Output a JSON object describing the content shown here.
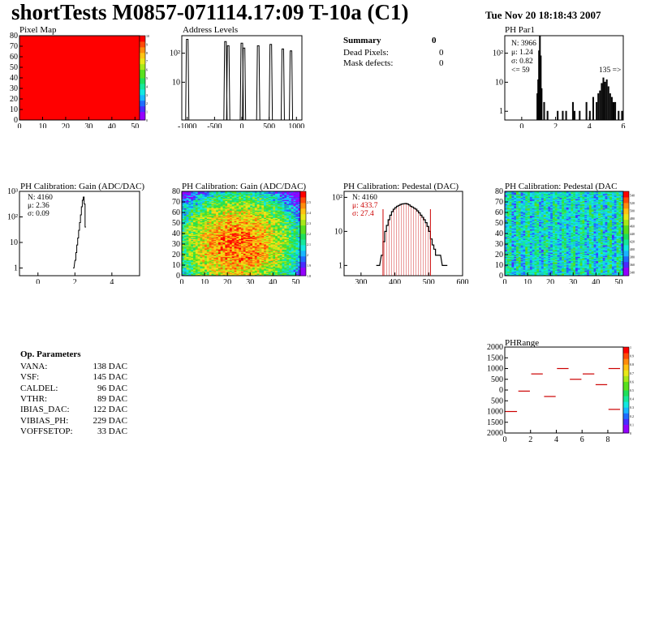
{
  "title": "shortTests M0857-071114.17:09 T-10a (C1)",
  "date": "Tue Nov 20 18:18:43 2007",
  "summary": {
    "title": "Summary",
    "value": "0",
    "rows": [
      {
        "label": "Dead Pixels:",
        "value": "0"
      },
      {
        "label": "Mask defects:",
        "value": "0"
      }
    ]
  },
  "op_parameters": {
    "title": "Op. Parameters",
    "rows": [
      {
        "name": "VANA:",
        "value": "138 DAC"
      },
      {
        "name": "VSF:",
        "value": "145 DAC"
      },
      {
        "name": "CALDEL:",
        "value": "96 DAC"
      },
      {
        "name": "VTHR:",
        "value": "89 DAC"
      },
      {
        "name": "IBIAS_DAC:",
        "value": "122 DAC"
      },
      {
        "name": "VIBIAS_PH:",
        "value": "229 DAC"
      },
      {
        "name": "VOFFSETOP:",
        "value": "33 DAC"
      }
    ]
  },
  "colors": {
    "palette": [
      "#9400ff",
      "#4a2cff",
      "#1f6dff",
      "#19b6ff",
      "#12e8e0",
      "#16e89a",
      "#1ee05a",
      "#58e01e",
      "#a8e818",
      "#e8e818",
      "#ffc312",
      "#ff8c0c",
      "#ff4a08",
      "#ff0000"
    ],
    "hist_line": "#000000",
    "red": "#cc0000"
  },
  "chart_data": [
    {
      "id": "pixel-map",
      "type": "heatmap",
      "title": "Pixel Map",
      "xlim": [
        0,
        52
      ],
      "ylim": [
        0,
        80
      ],
      "xticks": [
        0,
        10,
        20,
        30,
        40,
        50
      ],
      "yticks": [
        0,
        10,
        20,
        30,
        40,
        50,
        60,
        70,
        80
      ],
      "zticks": [
        0,
        1,
        2,
        3,
        4,
        5,
        6,
        7,
        8,
        9,
        10
      ],
      "zlim": [
        0,
        10
      ],
      "fill_value": 10
    },
    {
      "id": "address-levels",
      "type": "bar",
      "title": "Address Levels",
      "xlim": [
        -1100,
        1100
      ],
      "ylim": [
        0.5,
        400
      ],
      "log_y": true,
      "xticks": [
        -1000,
        -500,
        0,
        500,
        1000
      ],
      "yticks": [
        {
          "v": 10,
          "label": "10"
        },
        {
          "v": 100,
          "label": "10²"
        }
      ],
      "peaks": [
        {
          "x": -1000,
          "y": 300
        },
        {
          "x": -300,
          "y": 250
        },
        {
          "x": -250,
          "y": 180
        },
        {
          "x": 0,
          "y": 220
        },
        {
          "x": 40,
          "y": 150
        },
        {
          "x": 300,
          "y": 180
        },
        {
          "x": 530,
          "y": 200
        },
        {
          "x": 750,
          "y": 140
        },
        {
          "x": 900,
          "y": 120
        }
      ]
    },
    {
      "id": "ph-par1",
      "type": "bar",
      "title": "PH Par1",
      "xlim": [
        -1,
        6
      ],
      "ylim": [
        0.5,
        400
      ],
      "log_y": true,
      "xticks": [
        0,
        2,
        4,
        6
      ],
      "yticks": [
        {
          "v": 1,
          "label": "1"
        },
        {
          "v": 10,
          "label": "10"
        },
        {
          "v": 100,
          "label": "10²"
        }
      ],
      "stats": [
        "N: 3966",
        "μ: 1.24",
        "σ: 0.82",
        "<= 59"
      ],
      "overflow_label": "135 =>",
      "bins": [
        [
          0.9,
          4
        ],
        [
          0.95,
          12
        ],
        [
          1.0,
          120
        ],
        [
          1.05,
          400
        ],
        [
          1.1,
          80
        ],
        [
          1.15,
          6
        ],
        [
          1.3,
          2
        ],
        [
          1.5,
          1
        ],
        [
          2.1,
          1
        ],
        [
          2.4,
          1
        ],
        [
          2.6,
          1
        ],
        [
          3.0,
          2
        ],
        [
          3.1,
          1
        ],
        [
          3.4,
          1
        ],
        [
          3.8,
          2
        ],
        [
          4.0,
          1
        ],
        [
          4.2,
          3
        ],
        [
          4.4,
          2
        ],
        [
          4.5,
          4
        ],
        [
          4.6,
          5
        ],
        [
          4.7,
          9
        ],
        [
          4.8,
          14
        ],
        [
          4.9,
          10
        ],
        [
          5.0,
          12
        ],
        [
          5.1,
          7
        ],
        [
          5.2,
          4
        ],
        [
          5.3,
          3
        ],
        [
          5.4,
          2
        ],
        [
          5.5,
          2
        ],
        [
          5.7,
          1
        ],
        [
          5.9,
          1
        ]
      ]
    },
    {
      "id": "gain-1d",
      "type": "line",
      "title": "PH Calibration: Gain (ADC/DAC)",
      "xlim": [
        -1,
        5.5
      ],
      "ylim": [
        0.5,
        1000
      ],
      "log_y": true,
      "xticks": [
        0,
        2,
        4
      ],
      "yticks": [
        {
          "v": 1,
          "label": "1"
        },
        {
          "v": 10,
          "label": "10"
        },
        {
          "v": 100,
          "label": "10²"
        },
        {
          "v": 1000,
          "label": "10³"
        }
      ],
      "stats": [
        "N: 4160",
        "μ: 2.36",
        "σ: 0.09"
      ],
      "bins": [
        [
          1.9,
          1
        ],
        [
          2.0,
          2
        ],
        [
          2.05,
          4
        ],
        [
          2.1,
          8
        ],
        [
          2.15,
          15
        ],
        [
          2.2,
          30
        ],
        [
          2.25,
          60
        ],
        [
          2.3,
          120
        ],
        [
          2.35,
          250
        ],
        [
          2.4,
          450
        ],
        [
          2.45,
          600
        ],
        [
          2.5,
          320
        ],
        [
          2.55,
          40
        ]
      ]
    },
    {
      "id": "gain-map",
      "type": "heatmap",
      "title": "PH Calibration: Gain (ADC/DAC)",
      "xlim": [
        0,
        52
      ],
      "ylim": [
        0,
        80
      ],
      "xticks": [
        0,
        10,
        20,
        30,
        40,
        50
      ],
      "yticks": [
        0,
        10,
        20,
        30,
        40,
        50,
        60,
        70,
        80
      ],
      "zticks": [
        1.8,
        1.9,
        2.0,
        2.1,
        2.2,
        2.3,
        2.4,
        2.5
      ],
      "zlim": [
        1.8,
        2.6
      ]
    },
    {
      "id": "pedestal-1d",
      "type": "line",
      "title": "PH Calibration: Pedestal (DAC)",
      "xlim": [
        250,
        600
      ],
      "ylim": [
        0.5,
        150
      ],
      "log_y": true,
      "xticks": [
        300,
        400,
        500,
        600
      ],
      "yticks": [
        {
          "v": 1,
          "label": "1"
        },
        {
          "v": 10,
          "label": "10"
        },
        {
          "v": 100,
          "label": "10²"
        }
      ],
      "stats": [
        "N: 4160",
        "μ: 433.7",
        "σ: 27.4"
      ],
      "fit_range": [
        365,
        505
      ],
      "bins": [
        [
          345,
          1
        ],
        [
          350,
          1
        ],
        [
          360,
          2
        ],
        [
          365,
          5
        ],
        [
          370,
          10
        ],
        [
          375,
          15
        ],
        [
          380,
          22
        ],
        [
          385,
          30
        ],
        [
          390,
          38
        ],
        [
          395,
          45
        ],
        [
          400,
          50
        ],
        [
          405,
          55
        ],
        [
          410,
          58
        ],
        [
          415,
          62
        ],
        [
          420,
          64
        ],
        [
          425,
          65
        ],
        [
          430,
          66
        ],
        [
          435,
          64
        ],
        [
          440,
          60
        ],
        [
          445,
          55
        ],
        [
          450,
          52
        ],
        [
          455,
          48
        ],
        [
          460,
          45
        ],
        [
          465,
          40
        ],
        [
          470,
          35
        ],
        [
          475,
          30
        ],
        [
          480,
          26
        ],
        [
          485,
          22
        ],
        [
          490,
          18
        ],
        [
          495,
          14
        ],
        [
          500,
          10
        ],
        [
          505,
          6
        ],
        [
          510,
          4
        ],
        [
          515,
          3
        ],
        [
          520,
          2
        ],
        [
          530,
          2
        ],
        [
          540,
          1
        ],
        [
          550,
          1
        ]
      ]
    },
    {
      "id": "pedestal-map",
      "type": "heatmap",
      "title": "PH Calibration: Pedestal (DAC",
      "xlim": [
        0,
        52
      ],
      "ylim": [
        0,
        80
      ],
      "xticks": [
        0,
        10,
        20,
        30,
        40,
        50
      ],
      "yticks": [
        0,
        10,
        20,
        30,
        40,
        50,
        60,
        70,
        80
      ],
      "zticks": [
        340,
        360,
        380,
        400,
        420,
        440,
        460,
        480,
        500,
        520,
        540
      ],
      "zlim": [
        330,
        550
      ]
    },
    {
      "id": "ph-range",
      "type": "scatter",
      "title": "PHRange",
      "xlim": [
        0,
        9.2
      ],
      "ylim": [
        -2000,
        2000
      ],
      "xticks": [
        0,
        2,
        4,
        6,
        8
      ],
      "yticks": [
        -2000,
        -1500,
        -1000,
        -500,
        0,
        500,
        1000,
        1500,
        2000
      ],
      "ytick_labels": [
        "2000",
        "1500",
        "1000",
        "500",
        "0",
        "500",
        "1000",
        "1500",
        "2000"
      ],
      "zticks": [
        0,
        0.1,
        0.2,
        0.3,
        0.4,
        0.5,
        0.6,
        0.7,
        0.8,
        0.9,
        1
      ],
      "segments": [
        [
          0,
          1,
          -1000
        ],
        [
          1,
          2,
          -50
        ],
        [
          2,
          3,
          750
        ],
        [
          3,
          4,
          -300
        ],
        [
          4,
          5,
          1000
        ],
        [
          5,
          6,
          500
        ],
        [
          6,
          7,
          750
        ],
        [
          7,
          8,
          250
        ],
        [
          8,
          9,
          1000
        ],
        [
          8,
          9,
          -900
        ]
      ]
    }
  ]
}
